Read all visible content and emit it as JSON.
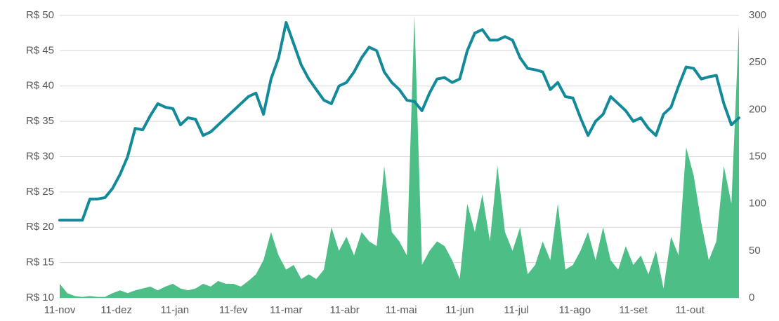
{
  "chart_data": {
    "type": "line",
    "x": [
      0,
      4,
      8,
      12,
      16,
      20,
      24,
      28,
      32,
      36,
      40,
      44,
      48,
      52,
      56,
      60,
      64,
      68,
      72,
      76,
      80,
      84,
      88,
      92,
      96,
      100,
      104,
      108,
      112,
      116,
      120,
      124,
      128,
      132,
      136,
      140,
      144,
      148,
      152,
      156,
      160,
      164,
      168,
      172,
      176,
      180,
      184,
      188,
      192,
      196,
      200,
      204,
      208,
      212,
      216,
      220,
      224,
      228,
      232,
      236,
      240,
      244,
      248,
      252,
      256,
      260,
      264,
      268,
      272,
      276,
      280,
      284,
      288,
      292,
      296,
      300,
      304,
      308,
      312,
      316,
      320,
      324,
      328,
      332,
      336,
      340,
      344,
      348,
      352,
      356,
      360
    ],
    "xlim": [
      0,
      360
    ],
    "xticks": [
      {
        "value": 0,
        "label": "11-nov"
      },
      {
        "value": 30,
        "label": "11-dez"
      },
      {
        "value": 61,
        "label": "11-jan"
      },
      {
        "value": 92,
        "label": "11-fev"
      },
      {
        "value": 120,
        "label": "11-mar"
      },
      {
        "value": 151,
        "label": "11-abr"
      },
      {
        "value": 181,
        "label": "11-mai"
      },
      {
        "value": 212,
        "label": "11-jun"
      },
      {
        "value": 242,
        "label": "11-jul"
      },
      {
        "value": 273,
        "label": "11-ago"
      },
      {
        "value": 304,
        "label": "11-set"
      },
      {
        "value": 334,
        "label": "11-out"
      }
    ],
    "ylim": [
      10,
      50
    ],
    "yticks": [
      {
        "value": 10,
        "label": "R$ 10"
      },
      {
        "value": 15,
        "label": "R$ 15"
      },
      {
        "value": 20,
        "label": "R$ 20"
      },
      {
        "value": 25,
        "label": "R$ 25"
      },
      {
        "value": 30,
        "label": "R$ 30"
      },
      {
        "value": 35,
        "label": "R$ 35"
      },
      {
        "value": 40,
        "label": "R$ 40"
      },
      {
        "value": 45,
        "label": "R$ 45"
      },
      {
        "value": 50,
        "label": "R$ 50"
      }
    ],
    "y2lim": [
      0,
      300
    ],
    "y2ticks": [
      0,
      50,
      100,
      150,
      200,
      250,
      300
    ],
    "grid": true,
    "series": [
      {
        "type": "area",
        "axis": "y2",
        "color": "#4dbf86",
        "values": [
          15,
          5,
          2,
          1,
          2,
          1,
          1,
          5,
          8,
          5,
          8,
          10,
          12,
          8,
          12,
          15,
          10,
          8,
          10,
          15,
          12,
          18,
          15,
          15,
          12,
          18,
          25,
          40,
          70,
          45,
          30,
          35,
          20,
          25,
          20,
          30,
          75,
          50,
          65,
          45,
          70,
          60,
          55,
          140,
          70,
          60,
          45,
          300,
          35,
          50,
          60,
          55,
          40,
          20,
          100,
          70,
          110,
          60,
          140,
          70,
          50,
          75,
          25,
          35,
          60,
          40,
          100,
          30,
          35,
          50,
          70,
          40,
          75,
          40,
          30,
          55,
          35,
          45,
          25,
          50,
          10,
          65,
          45,
          160,
          130,
          80,
          40,
          60,
          140,
          100,
          290
        ]
      },
      {
        "type": "line",
        "axis": "y",
        "color": "#128a9a",
        "values": [
          21,
          21,
          21,
          21,
          24,
          24,
          24.2,
          25.5,
          27.5,
          30,
          34,
          33.8,
          35.8,
          37.5,
          37,
          36.8,
          34.5,
          35.5,
          35.3,
          33,
          33.5,
          34.5,
          35.5,
          36.5,
          37.5,
          38.5,
          39,
          36,
          41,
          44,
          49,
          46,
          43,
          41,
          39.5,
          38,
          37.5,
          40,
          40.5,
          42,
          44,
          45.5,
          45,
          42,
          40.5,
          39.5,
          38,
          37.8,
          36.5,
          39,
          41,
          41.2,
          40.5,
          41,
          45,
          47.5,
          48,
          46.5,
          46.5,
          47,
          46.5,
          44,
          42.5,
          42.3,
          42,
          39.5,
          40.5,
          38.5,
          38.3,
          35.5,
          33,
          35,
          36,
          38.5,
          37.5,
          36.5,
          35,
          35.5,
          34,
          33,
          36,
          37,
          40,
          42.7,
          42.5,
          41,
          41.3,
          41.5,
          37.5,
          34.5,
          35.5
        ]
      }
    ]
  }
}
